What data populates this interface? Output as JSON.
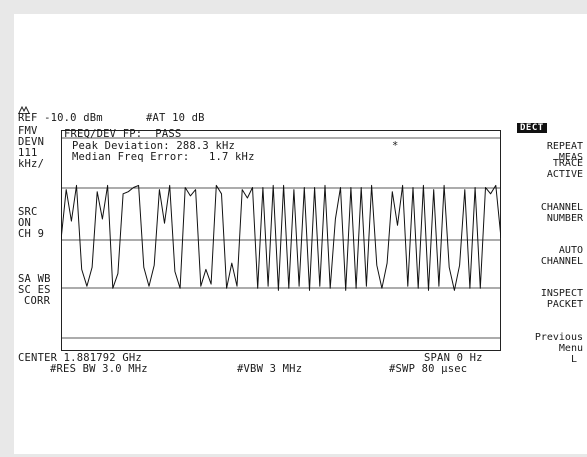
{
  "header": {
    "ref_level": "REF -10.0 dBm",
    "attenuation": "#AT 10 dB"
  },
  "left_annotations": {
    "fmv": "FMV",
    "devn": "DEVN",
    "scale_value": "111",
    "scale_unit": "kHz/",
    "src": "SRC",
    "src_state": "ON",
    "channel": "CH 9",
    "sa_wb": "SA WB",
    "sc_es": "SC ES",
    "corr": "CORR"
  },
  "measurement": {
    "status": "FREQ/DEV FP:  PASS",
    "peak_deviation": "Peak Deviation: 288.3 kHz",
    "median_error": "Median Freq Error:   1.7 kHz",
    "marker_symbol": "*"
  },
  "footer": {
    "center": "CENTER 1.881792 GHz",
    "span": "SPAN 0 Hz",
    "rbw": "#RES BW 3.0 MHz",
    "vbw": "#VBW 3 MHz",
    "sweep": "#SWP 80 µsec"
  },
  "softkeys": {
    "mode_badge": "DECT",
    "repeat_1": "REPEAT",
    "repeat_2": "MEAS",
    "trace_1": "TRACE",
    "trace_2": "ACTIVE",
    "channel_1": "CHANNEL",
    "channel_2": "NUMBER",
    "auto_1": "AUTO",
    "auto_2": "CHANNEL",
    "inspect_1": "INSPECT",
    "inspect_2": "PACKET",
    "previous_1": "Previous",
    "previous_2": "Menu",
    "previous_3": "L"
  },
  "chart_data": {
    "type": "line",
    "grid": true,
    "series": [
      {
        "values": [
          0.0,
          2.4,
          0.9,
          2.6,
          -1.4,
          -2.2,
          -1.3,
          2.3,
          1.0,
          2.6,
          -2.3,
          -1.6,
          2.2,
          2.3,
          2.5,
          2.6,
          -1.3,
          -2.2,
          -1.2,
          2.4,
          0.8,
          2.6,
          -1.5,
          -2.3,
          2.5,
          2.1,
          2.4,
          -2.2,
          -1.4,
          -2.1,
          2.6,
          2.2,
          -2.3,
          -1.1,
          -2.2,
          2.4,
          2.0,
          2.5,
          -2.3,
          2.5,
          -2.2,
          2.6,
          -2.4,
          2.6,
          -2.3,
          2.4,
          -2.2,
          2.5,
          -2.4,
          2.5,
          -2.2,
          2.6,
          -2.3,
          1.0,
          2.5,
          -2.4,
          2.5,
          -2.3,
          2.5,
          -2.2,
          2.6,
          -1.2,
          -2.3,
          -1.1,
          2.3,
          0.7,
          2.6,
          -2.2,
          2.5,
          -2.3,
          2.6,
          -2.4,
          2.4,
          -2.2,
          2.6,
          -1.3,
          -2.4,
          -1.2,
          2.4,
          -2.3,
          2.5,
          -2.3,
          2.5,
          2.2,
          2.6,
          0.1
        ]
      }
    ]
  }
}
